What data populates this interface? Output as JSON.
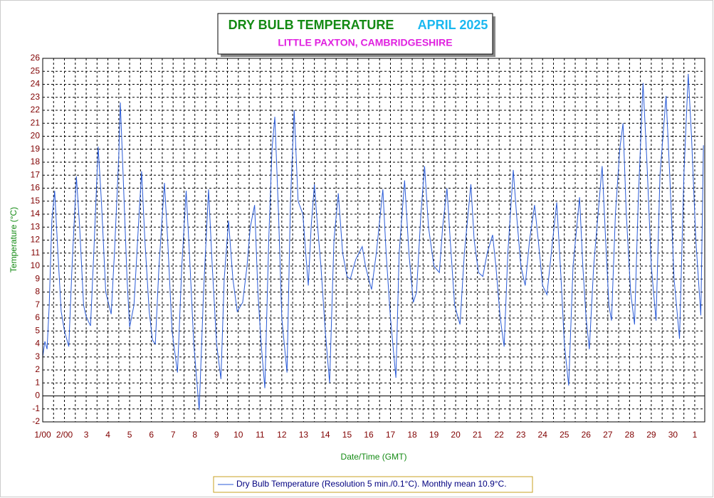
{
  "chart_data": {
    "type": "line",
    "title": "DRY BULB TEMPERATURE",
    "period": "APRIL 2025",
    "subtitle": "LITTLE PAXTON, CAMBRIDGESHIRE",
    "y_label": "Temperature (°C)",
    "x_label": "Date/Time (GMT)",
    "xlim": [
      0,
      30.46
    ],
    "ylim": [
      -2,
      26
    ],
    "yticks": [
      -2,
      -1,
      0,
      1,
      2,
      3,
      4,
      5,
      6,
      7,
      8,
      9,
      10,
      11,
      12,
      13,
      14,
      15,
      16,
      17,
      18,
      19,
      20,
      21,
      22,
      23,
      24,
      25,
      26
    ],
    "xticks": [
      {
        "value": 0,
        "label": "1/00"
      },
      {
        "value": 1,
        "label": "2/00"
      },
      {
        "value": 2,
        "label": "3"
      },
      {
        "value": 3,
        "label": "4"
      },
      {
        "value": 4,
        "label": "5"
      },
      {
        "value": 5,
        "label": "6"
      },
      {
        "value": 6,
        "label": "7"
      },
      {
        "value": 7,
        "label": "8"
      },
      {
        "value": 8,
        "label": "9"
      },
      {
        "value": 9,
        "label": "10"
      },
      {
        "value": 10,
        "label": "11"
      },
      {
        "value": 11,
        "label": "12"
      },
      {
        "value": 12,
        "label": "13"
      },
      {
        "value": 13,
        "label": "14"
      },
      {
        "value": 14,
        "label": "15"
      },
      {
        "value": 15,
        "label": "16"
      },
      {
        "value": 16,
        "label": "17"
      },
      {
        "value": 17,
        "label": "18"
      },
      {
        "value": 18,
        "label": "19"
      },
      {
        "value": 19,
        "label": "20"
      },
      {
        "value": 20,
        "label": "21"
      },
      {
        "value": 21,
        "label": "22"
      },
      {
        "value": 22,
        "label": "23"
      },
      {
        "value": 23,
        "label": "24"
      },
      {
        "value": 24,
        "label": "25"
      },
      {
        "value": 25,
        "label": "26"
      },
      {
        "value": 26,
        "label": "27"
      },
      {
        "value": 27,
        "label": "28"
      },
      {
        "value": 28,
        "label": "29"
      },
      {
        "value": 29,
        "label": "30"
      },
      {
        "value": 30,
        "label": "1"
      }
    ],
    "x_minor_ticks": [
      0.5,
      1.5,
      2.5,
      3.5,
      4.5,
      5.5,
      6.5,
      7.5,
      8.5,
      9.5,
      10.5,
      11.5,
      12.5,
      13.5,
      14.5,
      15.5,
      16.5,
      17.5,
      18.5,
      19.5,
      20.5,
      21.5,
      22.5,
      23.5,
      24.5,
      25.5,
      26.5,
      27.5,
      28.5,
      29.5
    ],
    "grid": true,
    "x": [
      0,
      0.1,
      0.2,
      0.3,
      0.42,
      0.55,
      0.7,
      0.85,
      1.0,
      1.2,
      1.35,
      1.55,
      1.7,
      1.88,
      2.0,
      2.2,
      2.35,
      2.55,
      2.7,
      2.9,
      3.15,
      3.3,
      3.5,
      3.57,
      3.7,
      3.88,
      4.0,
      4.2,
      4.4,
      4.55,
      4.7,
      4.9,
      5.05,
      5.18,
      5.35,
      5.6,
      5.75,
      5.95,
      6.2,
      6.4,
      6.6,
      6.75,
      6.95,
      7.2,
      7.4,
      7.63,
      7.8,
      8.0,
      8.2,
      8.35,
      8.55,
      8.75,
      8.95,
      9.2,
      9.4,
      9.55,
      9.75,
      9.9,
      10.05,
      10.22,
      10.4,
      10.55,
      10.68,
      10.85,
      11.0,
      11.24,
      11.4,
      11.57,
      11.75,
      11.97,
      12.1,
      12.22,
      12.35,
      12.5,
      12.6,
      12.8,
      13.0,
      13.2,
      13.4,
      13.6,
      13.8,
      14.0,
      14.15,
      14.4,
      14.7,
      14.85,
      15.0,
      15.13,
      15.35,
      15.65,
      15.8,
      16.0,
      16.25,
      16.4,
      16.65,
      16.85,
      17.05,
      17.2,
      17.4,
      17.57,
      17.75,
      18.0,
      18.25,
      18.4,
      18.6,
      18.75,
      18.95,
      19.2,
      19.4,
      19.7,
      19.85,
      20.05,
      20.25,
      20.45,
      20.7,
      20.85,
      21.05,
      21.23,
      21.4,
      21.65,
      21.8,
      22.0,
      22.2,
      22.4,
      22.63,
      22.8,
      23.0,
      23.2,
      23.4,
      23.65,
      23.85,
      24.0,
      24.2,
      24.4,
      24.7,
      24.85,
      25.0,
      25.15,
      25.35,
      25.6,
      25.74,
      25.9,
      26.05,
      26.17,
      26.35,
      26.55,
      26.7,
      26.85,
      27.05,
      27.23,
      27.4,
      27.62,
      27.8,
      28.0,
      28.22,
      28.4,
      28.68,
      28.85,
      29.05,
      29.3,
      29.5,
      29.7,
      29.85,
      30.05,
      30.28,
      30.4
    ],
    "series": [
      {
        "name": "Dry Bulb Temperature (Resolution 5 min./0.1°C). Monthly mean 10.9°C.",
        "color": "#2a5bd7",
        "values": [
          3.0,
          4.2,
          3.6,
          7,
          13.5,
          15.8,
          11,
          6.5,
          5,
          3.8,
          10,
          16.9,
          13,
          7,
          6.1,
          5.4,
          11,
          19.2,
          15,
          8,
          6.3,
          11,
          18.5,
          22.6,
          17,
          9,
          5.3,
          7.0,
          13,
          17.3,
          12,
          6.5,
          4.3,
          4.0,
          10,
          16.4,
          12,
          5,
          1.8,
          10,
          15.8,
          11,
          4,
          -1.1,
          8,
          15.9,
          10,
          4,
          1.3,
          9,
          13.5,
          9,
          6.5,
          7.2,
          10,
          13,
          14.7,
          8,
          4,
          0.6,
          12,
          19,
          21.5,
          14,
          6,
          1.8,
          15,
          22,
          15,
          14,
          11,
          8.5,
          13,
          16.3,
          14,
          10,
          5,
          1.0,
          12,
          15.6,
          11,
          9.2,
          9,
          10.5,
          11.5,
          10,
          9,
          8.2,
          11,
          15.9,
          11,
          6,
          1.4,
          11,
          16.6,
          11,
          7.2,
          8,
          14,
          17.7,
          13,
          10,
          9.5,
          13,
          16,
          12,
          7,
          5.5,
          11,
          16.3,
          12,
          9.5,
          9.2,
          11,
          12.4,
          10,
          6,
          3.8,
          11,
          17.4,
          14,
          10,
          8.5,
          12,
          14.7,
          12,
          8.5,
          7.8,
          11,
          14.9,
          9,
          4,
          0.8,
          10,
          15.3,
          10,
          6,
          3.6,
          10,
          15,
          17.7,
          12,
          7,
          5.8,
          14,
          19,
          21,
          14,
          8,
          5.5,
          15,
          24.1,
          18,
          10,
          5.8,
          17,
          23.1,
          17,
          9,
          4.4,
          17,
          24.8,
          20,
          12,
          6.2,
          19.3
        ]
      }
    ]
  }
}
